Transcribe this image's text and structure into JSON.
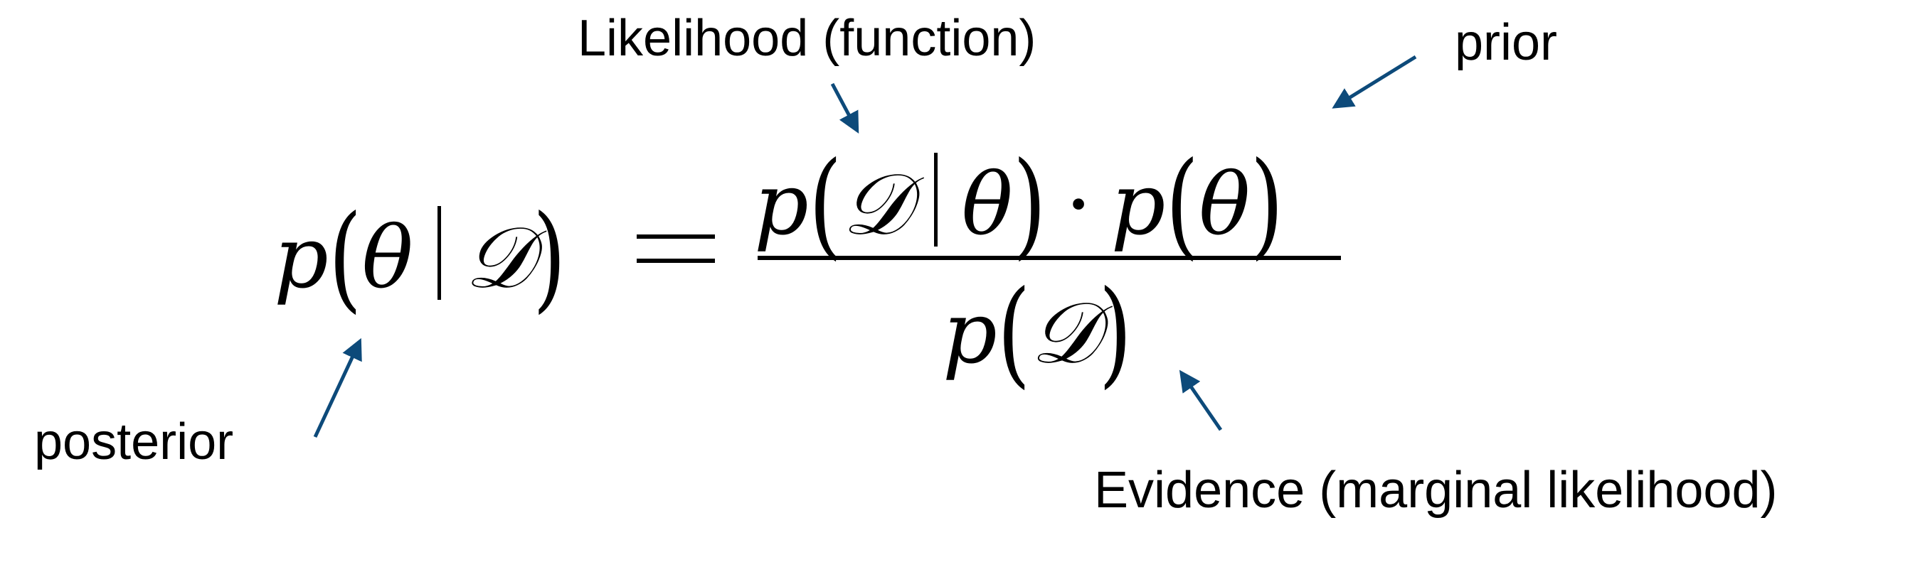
{
  "annotations": {
    "likelihood": "Likelihood (function)",
    "prior": "prior",
    "posterior": "posterior",
    "evidence": "Evidence (marginal likelihood)"
  },
  "formula": {
    "lhs_p": "p",
    "lhs_theta": "θ",
    "lhs_D": "𝒟",
    "num_p1": "p",
    "num_D": "𝒟",
    "num_theta1": "θ",
    "num_dot": "·",
    "num_p2": "p",
    "num_theta2": "θ",
    "den_p": "p",
    "den_D": "𝒟"
  },
  "colors": {
    "arrow": "#0d4a7a",
    "text": "#000000"
  }
}
